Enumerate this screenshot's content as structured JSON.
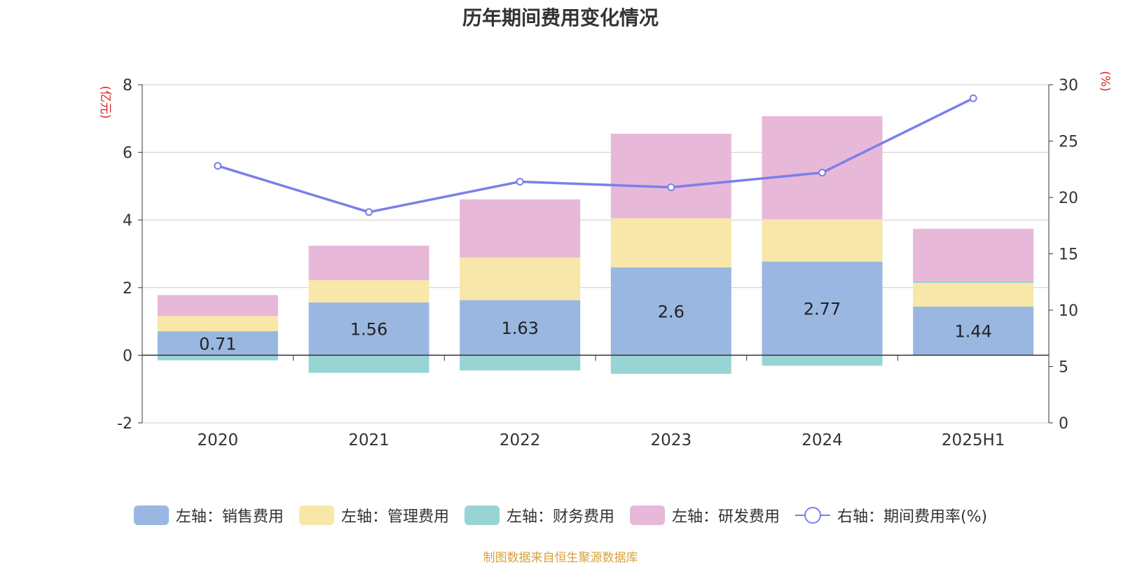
{
  "chart_data": {
    "type": "bar",
    "title": "历年期间费用变化情况",
    "categories": [
      "2020",
      "2021",
      "2022",
      "2023",
      "2024",
      "2025H1"
    ],
    "left_axis": {
      "unit": "(亿元)",
      "ylim": [
        -2,
        8
      ],
      "ticks": [
        "8",
        "6",
        "4",
        "2",
        "0",
        "-2"
      ]
    },
    "right_axis": {
      "unit": "(%)",
      "ylim": [
        0,
        30
      ],
      "ticks": [
        "30",
        "25",
        "20",
        "15",
        "10",
        "5",
        "0"
      ]
    },
    "stacked": true,
    "series": [
      {
        "name": "左轴：销售费用",
        "axis": "left",
        "color": "#9ab7e1",
        "values": [
          0.71,
          1.56,
          1.63,
          2.6,
          2.77,
          1.44
        ],
        "labels": [
          "0.71",
          "1.56",
          "1.63",
          "2.6",
          "2.77",
          "1.44"
        ]
      },
      {
        "name": "左轴：管理费用",
        "axis": "left",
        "color": "#f7e7a8",
        "values": [
          0.45,
          0.66,
          1.26,
          1.45,
          1.25,
          0.7
        ]
      },
      {
        "name": "左轴：财务费用",
        "axis": "left",
        "color": "#98d4d4",
        "values": [
          -0.15,
          -0.52,
          -0.45,
          -0.55,
          -0.31,
          0.05
        ]
      },
      {
        "name": "左轴：研发费用",
        "axis": "left",
        "color": "#e7b8d8",
        "values": [
          0.62,
          1.02,
          1.72,
          2.5,
          3.05,
          1.55
        ]
      },
      {
        "name": "右轴：期间费用率(%)",
        "axis": "right",
        "type": "line",
        "color": "#7b7fe8",
        "values": [
          22.8,
          18.7,
          21.4,
          20.9,
          22.2,
          28.8
        ]
      }
    ],
    "grid": true,
    "legend_position": "bottom"
  },
  "source_text": "制图数据来自恒生聚源数据库"
}
